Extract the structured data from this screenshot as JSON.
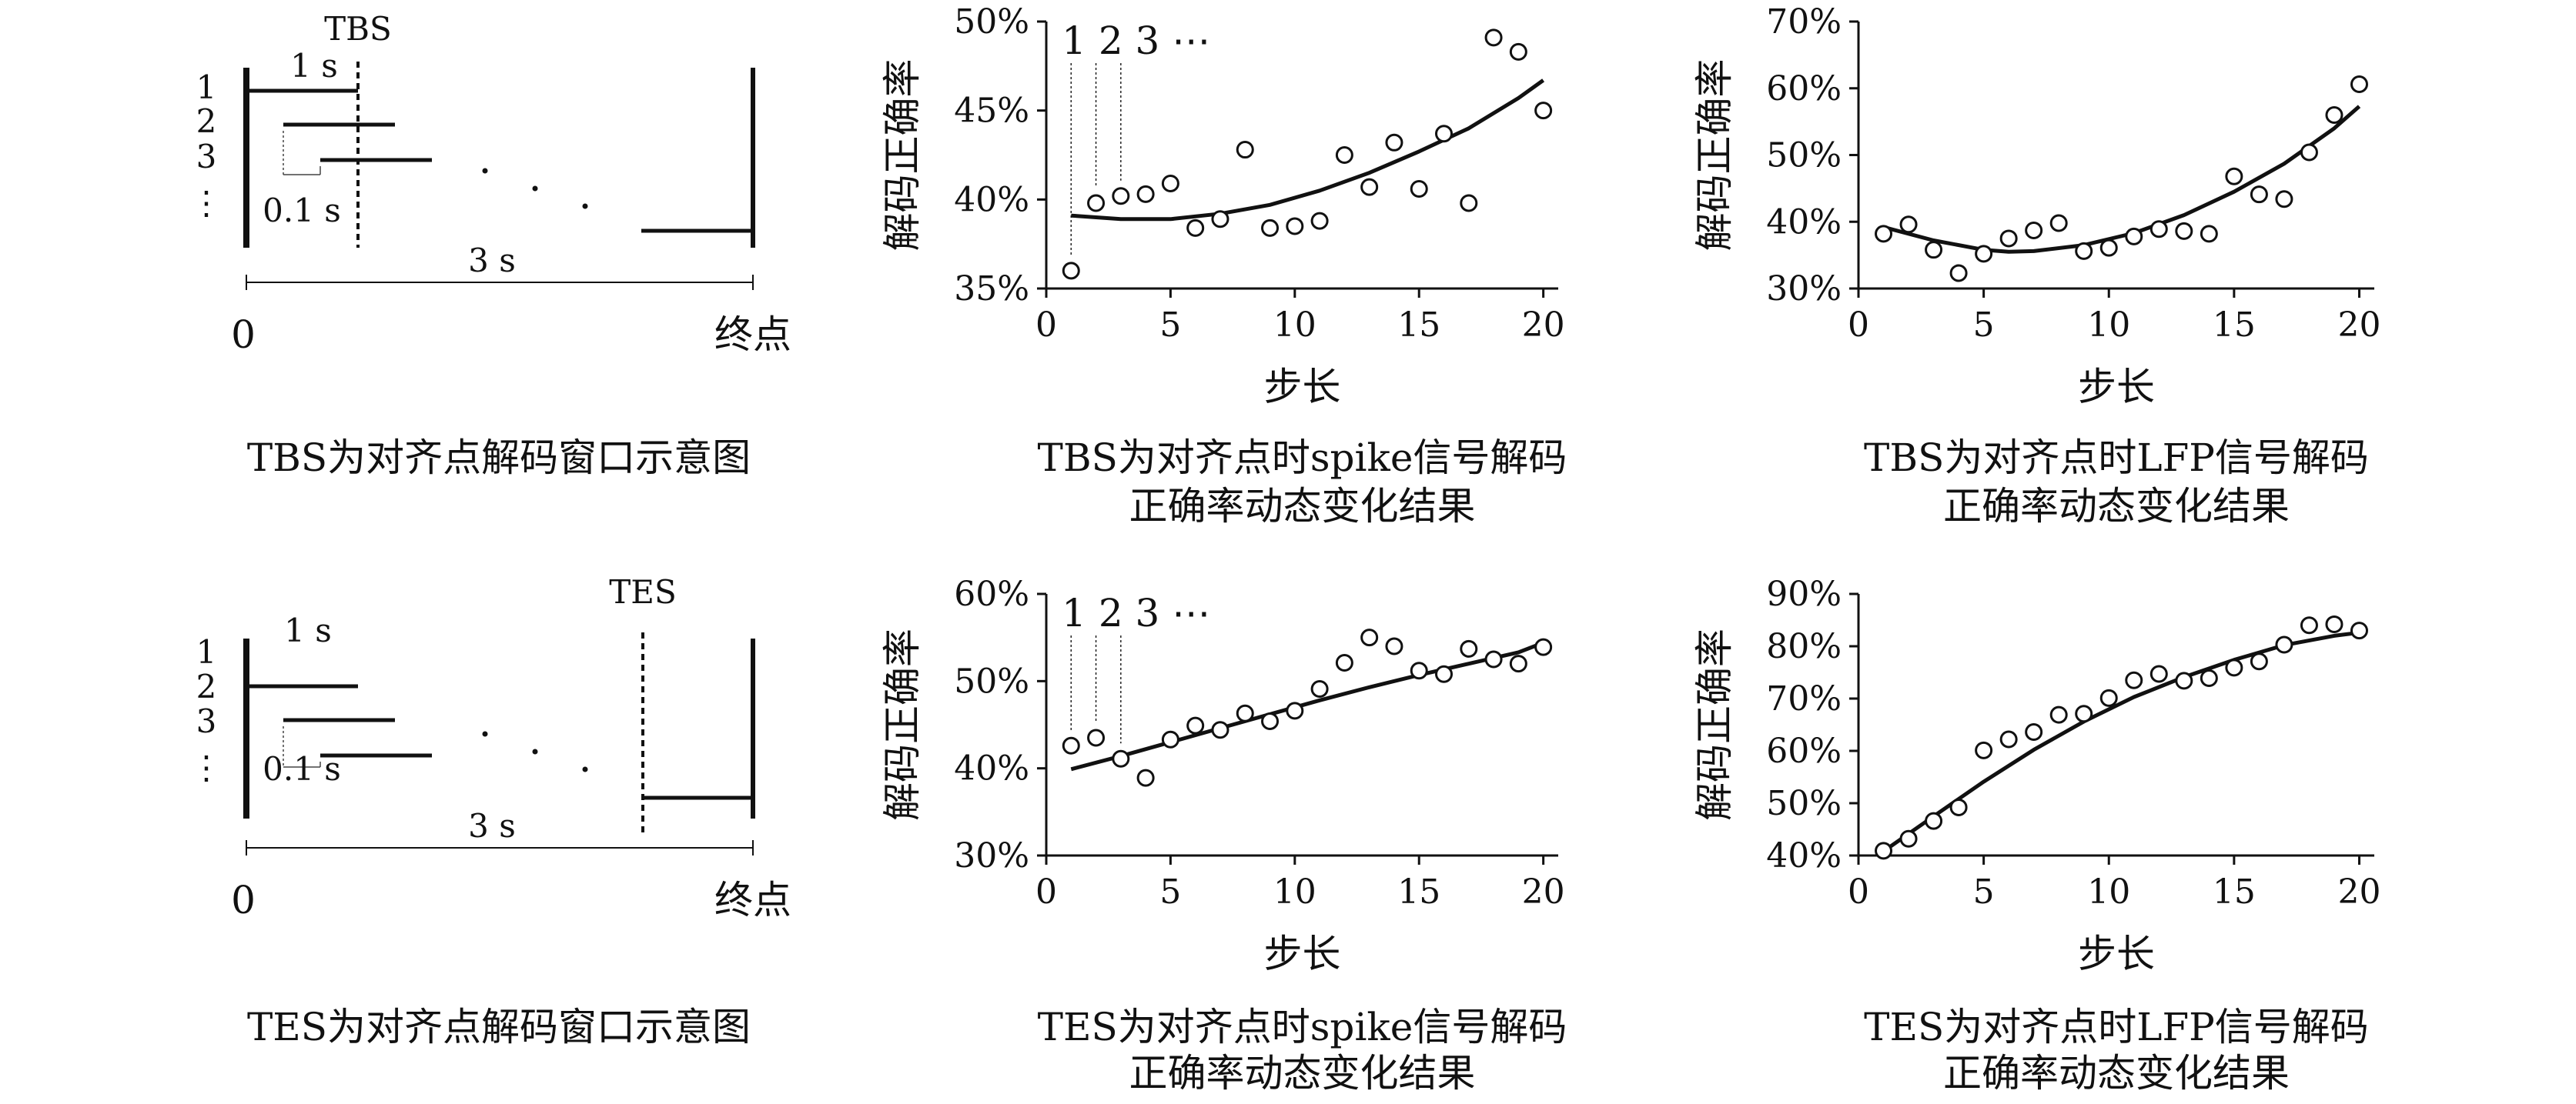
{
  "diagrams": [
    {
      "id": "tbs-window",
      "top_label": "TBS",
      "top_label_pos": "top",
      "step_labels": [
        "1",
        "2",
        "3",
        "⋮"
      ],
      "window_label": "1 s",
      "step_label": "0.1 s",
      "total_label": "3 s",
      "axis_start": "0",
      "axis_end": "终点",
      "caption": [
        "TBS为对齐点解码窗口示意图"
      ]
    },
    {
      "id": "tes-window",
      "top_label": "TES",
      "top_label_pos": "end",
      "step_labels": [
        "1",
        "2",
        "3",
        "⋮"
      ],
      "window_label": "1 s",
      "step_label": "0.1 s",
      "total_label": "3 s",
      "axis_start": "0",
      "axis_end": "终点",
      "caption": [
        "TES为对齐点解码窗口示意图"
      ]
    }
  ],
  "chart_data": [
    {
      "id": "tbs-spike",
      "type": "scatter",
      "ylabel": "解码正确率",
      "xlabel": "步长",
      "x_ticks": [
        "0",
        "5",
        "10",
        "15",
        "20"
      ],
      "y_ticks": [
        "35%",
        "40%",
        "45%",
        "50%"
      ],
      "xlim": [
        0,
        20.6
      ],
      "ylim": [
        35,
        50
      ],
      "annotation": "1 2 3 ⋯",
      "caption": [
        "TBS为对齐点时spike信号解码",
        "正确率动态变化结果"
      ],
      "points": {
        "x": [
          1,
          2,
          3,
          4,
          5,
          6,
          7,
          8,
          9,
          10,
          11,
          12,
          13,
          14,
          15,
          16,
          17,
          18,
          19,
          20
        ],
        "y": [
          36.0,
          39.8,
          40.2,
          40.3,
          40.9,
          38.4,
          38.9,
          42.8,
          38.4,
          38.5,
          38.8,
          42.5,
          40.7,
          43.2,
          40.6,
          43.7,
          39.8,
          49.1,
          48.3,
          45.0
        ]
      },
      "trend": {
        "x": [
          1,
          3,
          5,
          7,
          9,
          11,
          13,
          15,
          17,
          19,
          20
        ],
        "y": [
          39.1,
          38.9,
          38.9,
          39.2,
          39.7,
          40.5,
          41.5,
          42.7,
          44.0,
          45.7,
          46.7
        ]
      }
    },
    {
      "id": "tbs-lfp",
      "type": "scatter",
      "ylabel": "解码正确率",
      "xlabel": "步长",
      "x_ticks": [
        "0",
        "5",
        "10",
        "15",
        "20"
      ],
      "y_ticks": [
        "30%",
        "40%",
        "50%",
        "60%",
        "70%"
      ],
      "xlim": [
        0,
        20.6
      ],
      "ylim": [
        30,
        70
      ],
      "caption": [
        "TBS为对齐点时LFP信号解码",
        "正确率动态变化结果"
      ],
      "points": {
        "x": [
          1,
          2,
          3,
          4,
          5,
          6,
          7,
          8,
          9,
          10,
          11,
          12,
          13,
          14,
          15,
          16,
          17,
          18,
          19,
          20
        ],
        "y": [
          38.2,
          39.6,
          35.8,
          32.3,
          35.2,
          37.5,
          38.7,
          39.8,
          35.6,
          36.1,
          37.8,
          38.9,
          38.6,
          38.2,
          46.8,
          44.1,
          43.4,
          50.4,
          56.0,
          60.6
        ]
      },
      "trend": {
        "x": [
          1,
          3,
          5,
          6,
          7,
          9,
          11,
          13,
          15,
          17,
          19,
          20
        ],
        "y": [
          39.2,
          37.2,
          35.8,
          35.5,
          35.6,
          36.5,
          38.3,
          41.0,
          44.5,
          48.7,
          54.0,
          57.3
        ]
      }
    },
    {
      "id": "tes-spike",
      "type": "scatter",
      "ylabel": "解码正确率",
      "xlabel": "步长",
      "x_ticks": [
        "0",
        "5",
        "10",
        "15",
        "20"
      ],
      "y_ticks": [
        "30%",
        "40%",
        "50%",
        "60%"
      ],
      "xlim": [
        0,
        20.6
      ],
      "ylim": [
        30,
        60
      ],
      "annotation": "1 2 3 ⋯",
      "caption": [
        "TES为对齐点时spike信号解码",
        "正确率动态变化结果"
      ],
      "points": {
        "x": [
          1,
          2,
          3,
          4,
          5,
          6,
          7,
          8,
          9,
          10,
          11,
          12,
          13,
          14,
          15,
          16,
          17,
          18,
          19,
          20
        ],
        "y": [
          42.6,
          43.5,
          41.1,
          38.9,
          43.3,
          44.9,
          44.4,
          46.3,
          45.4,
          46.6,
          49.1,
          52.1,
          55.0,
          54.0,
          51.2,
          50.8,
          53.7,
          52.5,
          52.0,
          53.9
        ]
      },
      "trend": {
        "x": [
          1,
          3,
          5,
          7,
          9,
          11,
          13,
          15,
          17,
          19,
          20
        ],
        "y": [
          39.9,
          41.4,
          43.0,
          44.6,
          46.2,
          47.8,
          49.3,
          50.7,
          52.0,
          53.3,
          54.4
        ]
      }
    },
    {
      "id": "tes-lfp",
      "type": "scatter",
      "ylabel": "解码正确率",
      "xlabel": "步长",
      "x_ticks": [
        "0",
        "5",
        "10",
        "15",
        "20"
      ],
      "y_ticks": [
        "40%",
        "50%",
        "60%",
        "70%",
        "80%",
        "90%"
      ],
      "xlim": [
        0,
        20.6
      ],
      "ylim": [
        40,
        90
      ],
      "caption": [
        "TES为对齐点时LFP信号解码",
        "正确率动态变化结果"
      ],
      "points": {
        "x": [
          1,
          2,
          3,
          4,
          5,
          6,
          7,
          8,
          9,
          10,
          11,
          12,
          13,
          14,
          15,
          16,
          17,
          18,
          19,
          20
        ],
        "y": [
          40.9,
          43.2,
          46.6,
          49.2,
          60.1,
          62.2,
          63.6,
          66.9,
          67.1,
          70.1,
          73.5,
          74.7,
          73.4,
          73.9,
          75.9,
          77.1,
          80.3,
          84.0,
          84.2,
          83.0
        ]
      },
      "trend": {
        "x": [
          1,
          3,
          5,
          7,
          9,
          11,
          13,
          15,
          17,
          19,
          20
        ],
        "y": [
          40.8,
          47.5,
          54.1,
          60.2,
          65.6,
          70.3,
          74.1,
          77.4,
          80.2,
          82.0,
          82.6
        ]
      }
    }
  ]
}
